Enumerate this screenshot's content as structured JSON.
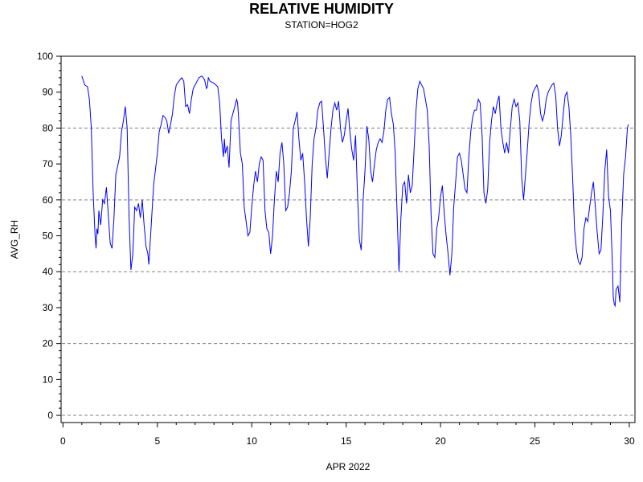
{
  "chart_data": {
    "type": "line",
    "title": "RELATIVE HUMIDITY",
    "subtitle": "STATION=HOG2",
    "xlabel": "APR 2022",
    "ylabel": "AVG_RH",
    "xlim": [
      -0.1,
      30.3
    ],
    "ylim": [
      -2,
      100
    ],
    "x_ticks": [
      0,
      5,
      10,
      15,
      20,
      25,
      30
    ],
    "x_tick_labels": [
      "0",
      "5",
      "10",
      "15",
      "20",
      "25",
      "30"
    ],
    "y_ticks": [
      0,
      10,
      20,
      30,
      40,
      50,
      60,
      70,
      80,
      90,
      100
    ],
    "y_tick_labels": [
      "0",
      "10",
      "20",
      "30",
      "40",
      "50",
      "60",
      "70",
      "80",
      "90",
      "100"
    ],
    "grid_y_values": [
      0,
      20,
      40,
      60,
      80,
      100
    ],
    "grid": "horizontal dashed",
    "line_color": "#0000ff",
    "series": [
      {
        "name": "",
        "points": [
          [
            1.0,
            94.5
          ],
          [
            1.15,
            92
          ],
          [
            1.3,
            91.5
          ],
          [
            1.4,
            88
          ],
          [
            1.5,
            80
          ],
          [
            1.6,
            62
          ],
          [
            1.7,
            50
          ],
          [
            1.75,
            46.5
          ],
          [
            1.8,
            52
          ],
          [
            1.85,
            50.5
          ],
          [
            1.9,
            57
          ],
          [
            2.0,
            53
          ],
          [
            2.1,
            60
          ],
          [
            2.2,
            59
          ],
          [
            2.3,
            63.5
          ],
          [
            2.4,
            56
          ],
          [
            2.5,
            48
          ],
          [
            2.6,
            46.5
          ],
          [
            2.7,
            55
          ],
          [
            2.8,
            67
          ],
          [
            3.0,
            72
          ],
          [
            3.1,
            79
          ],
          [
            3.2,
            82
          ],
          [
            3.3,
            86
          ],
          [
            3.4,
            80
          ],
          [
            3.5,
            55
          ],
          [
            3.6,
            40.5
          ],
          [
            3.7,
            45
          ],
          [
            3.8,
            58
          ],
          [
            3.9,
            57
          ],
          [
            4.0,
            59
          ],
          [
            4.1,
            55
          ],
          [
            4.2,
            60
          ],
          [
            4.3,
            53
          ],
          [
            4.4,
            47
          ],
          [
            4.5,
            45
          ],
          [
            4.55,
            42
          ],
          [
            4.7,
            55
          ],
          [
            4.8,
            64
          ],
          [
            5.0,
            73
          ],
          [
            5.1,
            79
          ],
          [
            5.2,
            81
          ],
          [
            5.3,
            83.5
          ],
          [
            5.4,
            83
          ],
          [
            5.5,
            82
          ],
          [
            5.6,
            78.5
          ],
          [
            5.7,
            81
          ],
          [
            5.8,
            84
          ],
          [
            5.9,
            89
          ],
          [
            6.0,
            92
          ],
          [
            6.2,
            93.5
          ],
          [
            6.3,
            94
          ],
          [
            6.4,
            93
          ],
          [
            6.5,
            86
          ],
          [
            6.6,
            86.5
          ],
          [
            6.7,
            84
          ],
          [
            6.8,
            88
          ],
          [
            6.9,
            91
          ],
          [
            7.0,
            92
          ],
          [
            7.1,
            93
          ],
          [
            7.2,
            94
          ],
          [
            7.35,
            94.5
          ],
          [
            7.5,
            93.5
          ],
          [
            7.6,
            91
          ],
          [
            7.65,
            91.5
          ],
          [
            7.7,
            94
          ],
          [
            7.8,
            93
          ],
          [
            8.0,
            92.5
          ],
          [
            8.2,
            91.5
          ],
          [
            8.3,
            87
          ],
          [
            8.4,
            77
          ],
          [
            8.5,
            72
          ],
          [
            8.55,
            77
          ],
          [
            8.6,
            73
          ],
          [
            8.7,
            75
          ],
          [
            8.8,
            69
          ],
          [
            8.9,
            82
          ],
          [
            9.0,
            84
          ],
          [
            9.1,
            86
          ],
          [
            9.2,
            88
          ],
          [
            9.25,
            87
          ],
          [
            9.3,
            83
          ],
          [
            9.4,
            73
          ],
          [
            9.5,
            70
          ],
          [
            9.6,
            58
          ],
          [
            9.7,
            54
          ],
          [
            9.8,
            50
          ],
          [
            9.9,
            51
          ],
          [
            10.0,
            58
          ],
          [
            10.1,
            64
          ],
          [
            10.2,
            68
          ],
          [
            10.3,
            65
          ],
          [
            10.4,
            70
          ],
          [
            10.5,
            72
          ],
          [
            10.6,
            71
          ],
          [
            10.7,
            57
          ],
          [
            10.8,
            52
          ],
          [
            10.9,
            51
          ],
          [
            11.0,
            45
          ],
          [
            11.1,
            50
          ],
          [
            11.2,
            60
          ],
          [
            11.3,
            68
          ],
          [
            11.4,
            65
          ],
          [
            11.5,
            73
          ],
          [
            11.6,
            76
          ],
          [
            11.7,
            70
          ],
          [
            11.8,
            57
          ],
          [
            11.9,
            58
          ],
          [
            12.0,
            62
          ],
          [
            12.1,
            68
          ],
          [
            12.2,
            80
          ],
          [
            12.3,
            82
          ],
          [
            12.4,
            84.5
          ],
          [
            12.5,
            77
          ],
          [
            12.6,
            71
          ],
          [
            12.7,
            73
          ],
          [
            12.8,
            65
          ],
          [
            12.9,
            55
          ],
          [
            13.0,
            47
          ],
          [
            13.1,
            55
          ],
          [
            13.2,
            70
          ],
          [
            13.3,
            77
          ],
          [
            13.4,
            80
          ],
          [
            13.5,
            85
          ],
          [
            13.6,
            87
          ],
          [
            13.7,
            87.5
          ],
          [
            13.8,
            80
          ],
          [
            13.9,
            72
          ],
          [
            14.0,
            66
          ],
          [
            14.1,
            73
          ],
          [
            14.2,
            80
          ],
          [
            14.3,
            85
          ],
          [
            14.4,
            87
          ],
          [
            14.5,
            85
          ],
          [
            14.6,
            87.5
          ],
          [
            14.7,
            80
          ],
          [
            14.8,
            76
          ],
          [
            14.9,
            78
          ],
          [
            15.0,
            82
          ],
          [
            15.1,
            85.5
          ],
          [
            15.2,
            79
          ],
          [
            15.3,
            74
          ],
          [
            15.4,
            71
          ],
          [
            15.5,
            78
          ],
          [
            15.6,
            62
          ],
          [
            15.7,
            49
          ],
          [
            15.8,
            46
          ],
          [
            15.9,
            60
          ],
          [
            16.0,
            68
          ],
          [
            16.1,
            80.5
          ],
          [
            16.2,
            77
          ],
          [
            16.3,
            68
          ],
          [
            16.4,
            65
          ],
          [
            16.5,
            70
          ],
          [
            16.6,
            74
          ],
          [
            16.7,
            76
          ],
          [
            16.8,
            77
          ],
          [
            16.9,
            76
          ],
          [
            17.0,
            79
          ],
          [
            17.1,
            85
          ],
          [
            17.2,
            88
          ],
          [
            17.3,
            88.5
          ],
          [
            17.4,
            84
          ],
          [
            17.5,
            81
          ],
          [
            17.6,
            73
          ],
          [
            17.7,
            56
          ],
          [
            17.8,
            40
          ],
          [
            17.9,
            55
          ],
          [
            18.0,
            64
          ],
          [
            18.1,
            65
          ],
          [
            18.2,
            59
          ],
          [
            18.3,
            67
          ],
          [
            18.4,
            62
          ],
          [
            18.5,
            64
          ],
          [
            18.6,
            74
          ],
          [
            18.7,
            85
          ],
          [
            18.8,
            91
          ],
          [
            18.9,
            93
          ],
          [
            19.0,
            92
          ],
          [
            19.1,
            91
          ],
          [
            19.2,
            88
          ],
          [
            19.3,
            85
          ],
          [
            19.4,
            75
          ],
          [
            19.5,
            56
          ],
          [
            19.6,
            45
          ],
          [
            19.7,
            44
          ],
          [
            19.8,
            52
          ],
          [
            19.9,
            55
          ],
          [
            20.0,
            61
          ],
          [
            20.1,
            64
          ],
          [
            20.2,
            56
          ],
          [
            20.3,
            50
          ],
          [
            20.4,
            45
          ],
          [
            20.5,
            39
          ],
          [
            20.6,
            45
          ],
          [
            20.7,
            58
          ],
          [
            20.8,
            65
          ],
          [
            20.9,
            72
          ],
          [
            21.0,
            73
          ],
          [
            21.1,
            71
          ],
          [
            21.2,
            67
          ],
          [
            21.3,
            63
          ],
          [
            21.4,
            62
          ],
          [
            21.5,
            72
          ],
          [
            21.6,
            79
          ],
          [
            21.7,
            83
          ],
          [
            21.8,
            85
          ],
          [
            21.9,
            85
          ],
          [
            22.0,
            88
          ],
          [
            22.1,
            87
          ],
          [
            22.2,
            78
          ],
          [
            22.3,
            62
          ],
          [
            22.4,
            59
          ],
          [
            22.5,
            63
          ],
          [
            22.6,
            76
          ],
          [
            22.7,
            82
          ],
          [
            22.8,
            86
          ],
          [
            22.9,
            84
          ],
          [
            23.0,
            87
          ],
          [
            23.1,
            89
          ],
          [
            23.2,
            80
          ],
          [
            23.3,
            76
          ],
          [
            23.4,
            73
          ],
          [
            23.5,
            76
          ],
          [
            23.6,
            73
          ],
          [
            23.7,
            80
          ],
          [
            23.8,
            86
          ],
          [
            23.9,
            88
          ],
          [
            24.0,
            86
          ],
          [
            24.1,
            87
          ],
          [
            24.2,
            82
          ],
          [
            24.3,
            66
          ],
          [
            24.4,
            60
          ],
          [
            24.5,
            67
          ],
          [
            24.6,
            74
          ],
          [
            24.7,
            82
          ],
          [
            24.8,
            87
          ],
          [
            24.9,
            90
          ],
          [
            25.0,
            91
          ],
          [
            25.1,
            92
          ],
          [
            25.2,
            90
          ],
          [
            25.3,
            84
          ],
          [
            25.4,
            82
          ],
          [
            25.5,
            84
          ],
          [
            25.6,
            88
          ],
          [
            25.7,
            90
          ],
          [
            25.8,
            91
          ],
          [
            25.9,
            92
          ],
          [
            26.0,
            92.5
          ],
          [
            26.1,
            89
          ],
          [
            26.2,
            80
          ],
          [
            26.3,
            75
          ],
          [
            26.4,
            78
          ],
          [
            26.5,
            84
          ],
          [
            26.6,
            89
          ],
          [
            26.7,
            90
          ],
          [
            26.8,
            86
          ],
          [
            26.9,
            78
          ],
          [
            27.0,
            66
          ],
          [
            27.1,
            52
          ],
          [
            27.2,
            46
          ],
          [
            27.3,
            43
          ],
          [
            27.4,
            42
          ],
          [
            27.5,
            44
          ],
          [
            27.6,
            52
          ],
          [
            27.7,
            55
          ],
          [
            27.8,
            54
          ],
          [
            27.9,
            58
          ],
          [
            28.0,
            62
          ],
          [
            28.1,
            65
          ],
          [
            28.2,
            58
          ],
          [
            28.3,
            51
          ],
          [
            28.4,
            45
          ],
          [
            28.5,
            46
          ],
          [
            28.6,
            56
          ],
          [
            28.7,
            68
          ],
          [
            28.8,
            74
          ],
          [
            28.9,
            61
          ],
          [
            29.0,
            57
          ],
          [
            29.1,
            43
          ],
          [
            29.15,
            33
          ],
          [
            29.2,
            31
          ],
          [
            29.25,
            30.5
          ],
          [
            29.3,
            35
          ],
          [
            29.4,
            36
          ],
          [
            29.5,
            31.5
          ],
          [
            29.6,
            54
          ],
          [
            29.7,
            67
          ],
          [
            29.8,
            72
          ],
          [
            29.9,
            80
          ],
          [
            29.95,
            81
          ]
        ]
      }
    ]
  }
}
